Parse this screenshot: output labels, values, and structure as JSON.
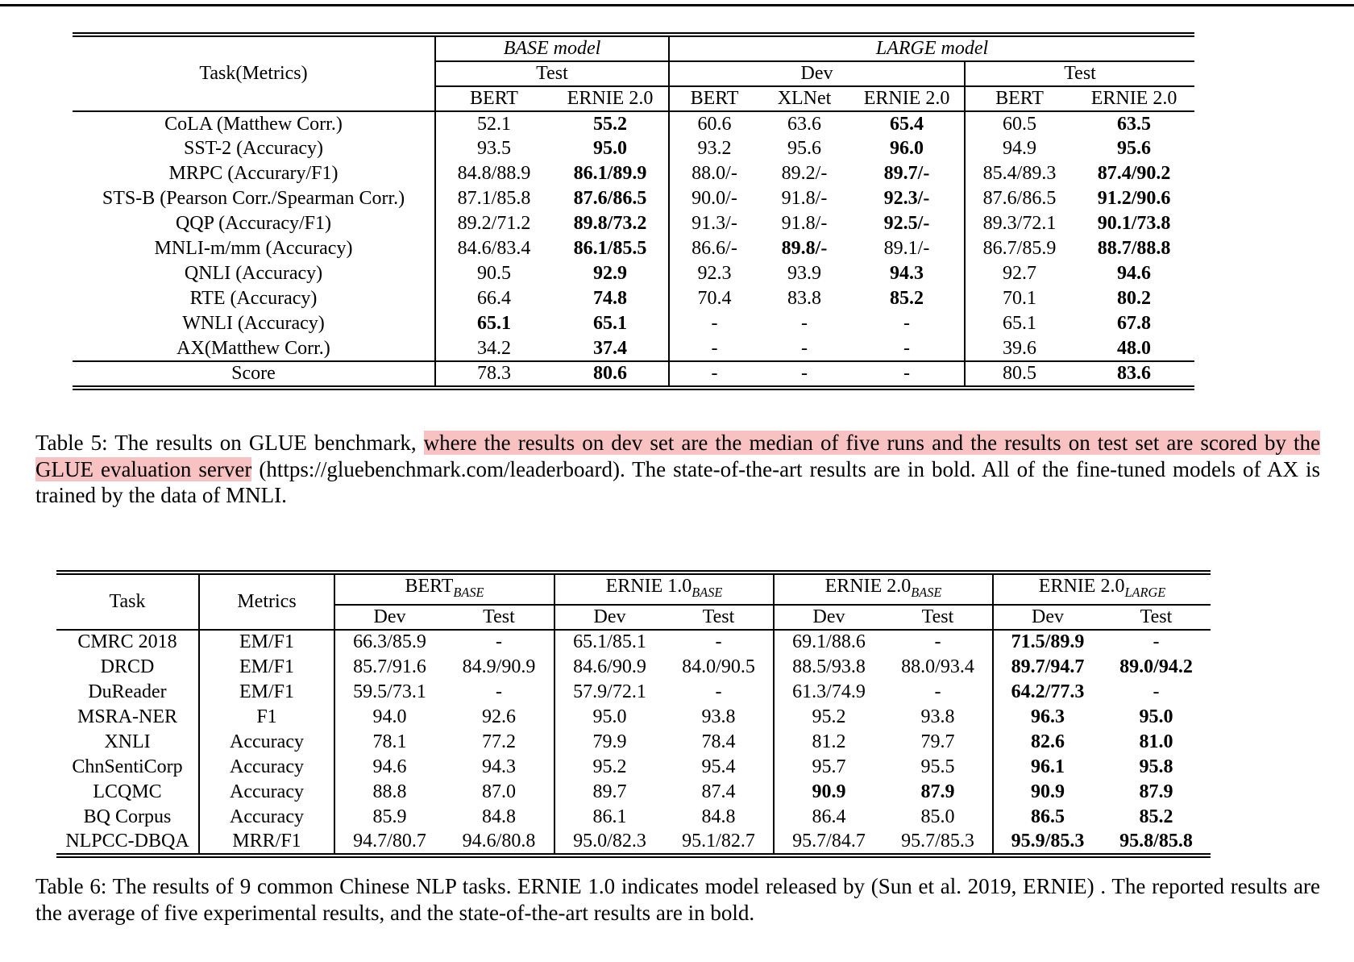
{
  "page": {
    "highlight_color": "#f8c2c2"
  },
  "table5": {
    "header": {
      "task": "Task(Metrics)",
      "groups": [
        {
          "label": "BASE model",
          "cols": 2
        },
        {
          "label": "LARGE model",
          "cols": 5
        }
      ],
      "splits": [
        {
          "label": "Test",
          "cols": 2
        },
        {
          "label": "Dev",
          "cols": 3
        },
        {
          "label": "Test",
          "cols": 2
        }
      ],
      "models": [
        "BERT",
        "ERNIE 2.0",
        "BERT",
        "XLNet",
        "ERNIE 2.0",
        "BERT",
        "ERNIE 2.0"
      ]
    },
    "rows": [
      {
        "task": "CoLA (Matthew Corr.)",
        "cells": [
          "52.1",
          {
            "v": "55.2",
            "b": true
          },
          "60.6",
          "63.6",
          {
            "v": "65.4",
            "b": true
          },
          "60.5",
          {
            "v": "63.5",
            "b": true
          }
        ]
      },
      {
        "task": "SST-2 (Accuracy)",
        "cells": [
          "93.5",
          {
            "v": "95.0",
            "b": true
          },
          "93.2",
          "95.6",
          {
            "v": "96.0",
            "b": true
          },
          "94.9",
          {
            "v": "95.6",
            "b": true
          }
        ]
      },
      {
        "task": "MRPC (Accurary/F1)",
        "cells": [
          "84.8/88.9",
          {
            "v": "86.1/89.9",
            "b": true
          },
          "88.0/-",
          "89.2/-",
          {
            "v": "89.7/-",
            "b": true
          },
          "85.4/89.3",
          {
            "v": "87.4/90.2",
            "b": true
          }
        ]
      },
      {
        "task": "STS-B (Pearson Corr./Spearman Corr.)",
        "cells": [
          "87.1/85.8",
          {
            "v": "87.6/86.5",
            "b": true
          },
          "90.0/-",
          "91.8/-",
          {
            "v": "92.3/-",
            "b": true
          },
          "87.6/86.5",
          {
            "v": "91.2/90.6",
            "b": true
          }
        ]
      },
      {
        "task": "QQP (Accuracy/F1)",
        "cells": [
          "89.2/71.2",
          {
            "v": "89.8/73.2",
            "b": true
          },
          "91.3/-",
          "91.8/-",
          {
            "v": "92.5/-",
            "b": true
          },
          "89.3/72.1",
          {
            "v": "90.1/73.8",
            "b": true
          }
        ]
      },
      {
        "task": "MNLI-m/mm (Accuracy)",
        "cells": [
          "84.6/83.4",
          {
            "v": "86.1/85.5",
            "b": true
          },
          "86.6/-",
          {
            "v": "89.8/-",
            "b": true
          },
          "89.1/-",
          "86.7/85.9",
          {
            "v": "88.7/88.8",
            "b": true
          }
        ]
      },
      {
        "task": "QNLI (Accuracy)",
        "cells": [
          "90.5",
          {
            "v": "92.9",
            "b": true
          },
          "92.3",
          "93.9",
          {
            "v": "94.3",
            "b": true
          },
          "92.7",
          {
            "v": "94.6",
            "b": true
          }
        ]
      },
      {
        "task": "RTE (Accuracy)",
        "cells": [
          "66.4",
          {
            "v": "74.8",
            "b": true
          },
          "70.4",
          "83.8",
          {
            "v": "85.2",
            "b": true
          },
          "70.1",
          {
            "v": "80.2",
            "b": true
          }
        ]
      },
      {
        "task": "WNLI (Accuracy)",
        "cells": [
          {
            "v": "65.1",
            "b": true
          },
          {
            "v": "65.1",
            "b": true
          },
          "-",
          "-",
          "-",
          "65.1",
          {
            "v": "67.8",
            "b": true
          }
        ]
      },
      {
        "task": "AX(Matthew Corr.)",
        "cells": [
          "34.2",
          {
            "v": "37.4",
            "b": true
          },
          "-",
          "-",
          "-",
          "39.6",
          {
            "v": "48.0",
            "b": true
          }
        ]
      }
    ],
    "score": {
      "task": "Score",
      "cells": [
        "78.3",
        {
          "v": "80.6",
          "b": true
        },
        "-",
        "-",
        "-",
        "80.5",
        {
          "v": "83.6",
          "b": true
        }
      ]
    }
  },
  "caption5": {
    "lead": "Table 5: The results on GLUE benchmark, ",
    "highlight": "where the results on dev set are the median of five runs and the results on test set are scored by the GLUE evaluation server",
    "tail": " (https://gluebenchmark.com/leaderboard). The state-of-the-art results are in bold. All of the fine-tuned models of AX is trained by the data of MNLI."
  },
  "table6": {
    "header": {
      "task": "Task",
      "metrics": "Metrics",
      "groups": [
        {
          "label": "BERT",
          "sub": "BASE"
        },
        {
          "label": "ERNIE 1.0",
          "sub": "BASE"
        },
        {
          "label": "ERNIE 2.0",
          "sub": "BASE"
        },
        {
          "label": "ERNIE 2.0",
          "sub": "LARGE"
        }
      ],
      "split_labels": [
        "Dev",
        "Test",
        "Dev",
        "Test",
        "Dev",
        "Test",
        "Dev",
        "Test"
      ]
    },
    "rows": [
      {
        "task": "CMRC 2018",
        "metric": "EM/F1",
        "cells": [
          "66.3/85.9",
          "-",
          "65.1/85.1",
          "-",
          "69.1/88.6",
          "-",
          {
            "v": "71.5/89.9",
            "b": true
          },
          "-"
        ]
      },
      {
        "task": "DRCD",
        "metric": "EM/F1",
        "cells": [
          "85.7/91.6",
          "84.9/90.9",
          "84.6/90.9",
          "84.0/90.5",
          "88.5/93.8",
          "88.0/93.4",
          {
            "v": "89.7/94.7",
            "b": true
          },
          {
            "v": "89.0/94.2",
            "b": true
          }
        ]
      },
      {
        "task": "DuReader",
        "metric": "EM/F1",
        "cells": [
          "59.5/73.1",
          "-",
          "57.9/72.1",
          "-",
          "61.3/74.9",
          "-",
          {
            "v": "64.2/77.3",
            "b": true
          },
          "-"
        ]
      },
      {
        "task": "MSRA-NER",
        "metric": "F1",
        "cells": [
          "94.0",
          "92.6",
          "95.0",
          "93.8",
          "95.2",
          "93.8",
          {
            "v": "96.3",
            "b": true
          },
          {
            "v": "95.0",
            "b": true
          }
        ]
      },
      {
        "task": "XNLI",
        "metric": "Accuracy",
        "cells": [
          "78.1",
          "77.2",
          "79.9",
          "78.4",
          "81.2",
          "79.7",
          {
            "v": "82.6",
            "b": true
          },
          {
            "v": "81.0",
            "b": true
          }
        ]
      },
      {
        "task": "ChnSentiCorp",
        "metric": "Accuracy",
        "cells": [
          "94.6",
          "94.3",
          "95.2",
          "95.4",
          "95.7",
          "95.5",
          {
            "v": "96.1",
            "b": true
          },
          {
            "v": "95.8",
            "b": true
          }
        ]
      },
      {
        "task": "LCQMC",
        "metric": "Accuracy",
        "cells": [
          "88.8",
          "87.0",
          "89.7",
          "87.4",
          {
            "v": "90.9",
            "b": true
          },
          {
            "v": "87.9",
            "b": true
          },
          {
            "v": "90.9",
            "b": true
          },
          {
            "v": "87.9",
            "b": true
          }
        ]
      },
      {
        "task": "BQ Corpus",
        "metric": "Accuracy",
        "cells": [
          "85.9",
          "84.8",
          "86.1",
          "84.8",
          "86.4",
          "85.0",
          {
            "v": "86.5",
            "b": true
          },
          {
            "v": "85.2",
            "b": true
          }
        ]
      },
      {
        "task": "NLPCC-DBQA",
        "metric": "MRR/F1",
        "cells": [
          "94.7/80.7",
          "94.6/80.8",
          "95.0/82.3",
          "95.1/82.7",
          "95.7/84.7",
          "95.7/85.3",
          {
            "v": "95.9/85.3",
            "b": true
          },
          {
            "v": "95.8/85.8",
            "b": true
          }
        ]
      }
    ]
  },
  "caption6": {
    "text": "Table 6: The results of 9 common Chinese NLP tasks. ERNIE 1.0 indicates model released by (Sun et al. 2019, ERNIE) . The reported results are the average of five experimental results, and the state-of-the-art results are in bold."
  }
}
